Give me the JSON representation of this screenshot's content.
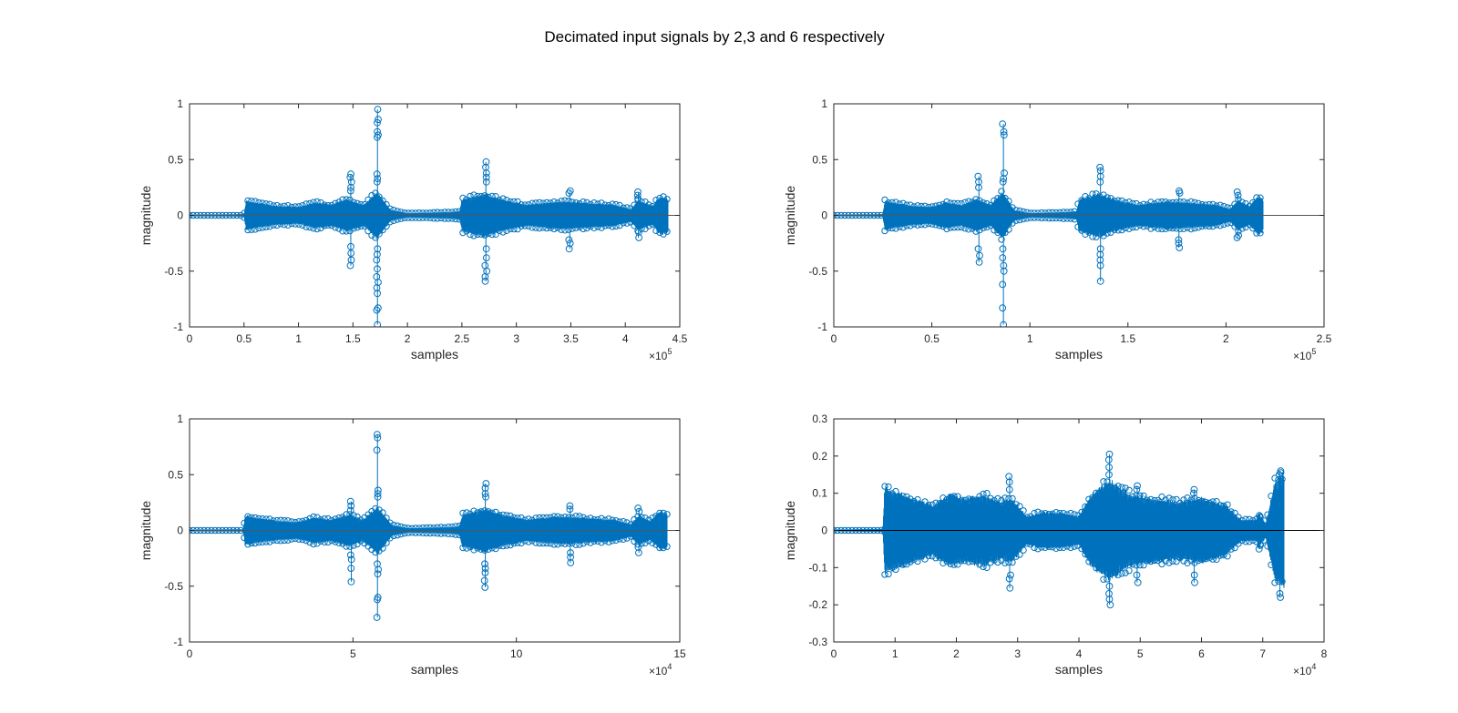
{
  "figure_title": "Decimated input signals by 2,3 and 6 respectively",
  "chart_data": [
    {
      "type": "stem",
      "title": "",
      "xlabel": "samples",
      "ylabel": "magnitude",
      "xlim": [
        0,
        450000
      ],
      "ylim": [
        -1,
        1
      ],
      "x_ticks": [
        0,
        50000,
        100000,
        150000,
        200000,
        250000,
        300000,
        350000,
        400000,
        450000
      ],
      "x_tick_labels": [
        "0",
        "0.5",
        "1",
        "1.5",
        "2",
        "2.5",
        "3",
        "3.5",
        "4",
        "4.5"
      ],
      "x_exponent_base": "×10",
      "x_exponent_power": "5",
      "y_ticks": [
        -1,
        -0.5,
        0,
        0.5,
        1
      ],
      "y_tick_labels": [
        "-1",
        "-0.5",
        "0",
        "0.5",
        "1"
      ],
      "series_color": "#0072BD",
      "data_end": 439000,
      "envelope": [
        {
          "x": 0,
          "amp": 0.005
        },
        {
          "x": 50000,
          "amp": 0.01
        },
        {
          "x": 52000,
          "amp": 0.14
        },
        {
          "x": 60000,
          "amp": 0.12
        },
        {
          "x": 80000,
          "amp": 0.09
        },
        {
          "x": 100000,
          "amp": 0.08
        },
        {
          "x": 115000,
          "amp": 0.12
        },
        {
          "x": 130000,
          "amp": 0.1
        },
        {
          "x": 145000,
          "amp": 0.15
        },
        {
          "x": 160000,
          "amp": 0.1
        },
        {
          "x": 172000,
          "amp": 0.22
        },
        {
          "x": 185000,
          "amp": 0.05
        },
        {
          "x": 200000,
          "amp": 0.02
        },
        {
          "x": 240000,
          "amp": 0.03
        },
        {
          "x": 248000,
          "amp": 0.04
        },
        {
          "x": 250000,
          "amp": 0.15
        },
        {
          "x": 270000,
          "amp": 0.2
        },
        {
          "x": 290000,
          "amp": 0.14
        },
        {
          "x": 310000,
          "amp": 0.1
        },
        {
          "x": 340000,
          "amp": 0.13
        },
        {
          "x": 360000,
          "amp": 0.12
        },
        {
          "x": 390000,
          "amp": 0.1
        },
        {
          "x": 405000,
          "amp": 0.06
        },
        {
          "x": 412000,
          "amp": 0.14
        },
        {
          "x": 425000,
          "amp": 0.09
        },
        {
          "x": 432000,
          "amp": 0.18
        },
        {
          "x": 439000,
          "amp": 0.16
        }
      ],
      "spikes": [
        {
          "x": 148000,
          "values": [
            0.37,
            0.34,
            0.3,
            0.25,
            0.22,
            -0.28,
            -0.34,
            -0.4,
            -0.45
          ]
        },
        {
          "x": 172500,
          "values": [
            0.95,
            0.86,
            0.83,
            0.75,
            0.72,
            0.7,
            0.37,
            0.33,
            0.3,
            -0.3,
            -0.35,
            -0.4,
            -0.48,
            -0.55,
            -0.6,
            -0.65,
            -0.7,
            -0.83,
            -0.85,
            -0.98
          ]
        },
        {
          "x": 272000,
          "values": [
            0.48,
            0.43,
            0.38,
            0.34,
            0.3,
            -0.3,
            -0.38,
            -0.45,
            -0.5,
            -0.55,
            -0.59
          ]
        },
        {
          "x": 349000,
          "values": [
            0.22,
            0.2,
            -0.22,
            -0.25,
            -0.3
          ]
        },
        {
          "x": 412000,
          "values": [
            0.21,
            0.18,
            0.15,
            -0.15,
            -0.2
          ]
        }
      ]
    },
    {
      "type": "stem",
      "title": "",
      "xlabel": "samples",
      "ylabel": "magnitude",
      "xlim": [
        0,
        250000
      ],
      "ylim": [
        -1,
        1
      ],
      "x_ticks": [
        0,
        50000,
        100000,
        150000,
        200000,
        250000
      ],
      "x_tick_labels": [
        "0",
        "0.5",
        "1",
        "1.5",
        "2",
        "2.5"
      ],
      "x_exponent_base": "×10",
      "x_exponent_power": "5",
      "y_ticks": [
        -1,
        -0.5,
        0,
        0.5,
        1
      ],
      "y_tick_labels": [
        "-1",
        "-0.5",
        "0",
        "0.5",
        "1"
      ],
      "series_color": "#0072BD",
      "data_end": 219000,
      "envelope": [
        {
          "x": 0,
          "amp": 0.005
        },
        {
          "x": 25000,
          "amp": 0.01
        },
        {
          "x": 26000,
          "amp": 0.14
        },
        {
          "x": 30000,
          "amp": 0.12
        },
        {
          "x": 40000,
          "amp": 0.09
        },
        {
          "x": 50000,
          "amp": 0.08
        },
        {
          "x": 57000,
          "amp": 0.12
        },
        {
          "x": 65000,
          "amp": 0.1
        },
        {
          "x": 73000,
          "amp": 0.15
        },
        {
          "x": 80000,
          "amp": 0.1
        },
        {
          "x": 86000,
          "amp": 0.22
        },
        {
          "x": 92000,
          "amp": 0.05
        },
        {
          "x": 100000,
          "amp": 0.02
        },
        {
          "x": 120000,
          "amp": 0.03
        },
        {
          "x": 124000,
          "amp": 0.04
        },
        {
          "x": 125000,
          "amp": 0.15
        },
        {
          "x": 135000,
          "amp": 0.2
        },
        {
          "x": 145000,
          "amp": 0.14
        },
        {
          "x": 155000,
          "amp": 0.1
        },
        {
          "x": 170000,
          "amp": 0.13
        },
        {
          "x": 180000,
          "amp": 0.12
        },
        {
          "x": 195000,
          "amp": 0.1
        },
        {
          "x": 202000,
          "amp": 0.06
        },
        {
          "x": 206000,
          "amp": 0.14
        },
        {
          "x": 212000,
          "amp": 0.09
        },
        {
          "x": 216000,
          "amp": 0.18
        },
        {
          "x": 219000,
          "amp": 0.16
        }
      ],
      "spikes": [
        {
          "x": 74000,
          "values": [
            0.35,
            0.3,
            0.25,
            -0.3,
            -0.36,
            -0.42
          ]
        },
        {
          "x": 86500,
          "values": [
            0.82,
            0.75,
            0.72,
            0.38,
            0.33,
            0.3,
            -0.3,
            -0.38,
            -0.45,
            -0.5,
            -0.62,
            -0.83,
            -0.98
          ]
        },
        {
          "x": 136000,
          "values": [
            0.43,
            0.4,
            0.35,
            0.3,
            -0.3,
            -0.35,
            -0.4,
            -0.45,
            -0.59
          ]
        },
        {
          "x": 176000,
          "values": [
            0.22,
            0.2,
            -0.22,
            -0.25,
            -0.29
          ]
        },
        {
          "x": 206000,
          "values": [
            0.21,
            0.18,
            -0.18,
            -0.2
          ]
        }
      ]
    },
    {
      "type": "stem",
      "title": "",
      "xlabel": "samples",
      "ylabel": "magnitude",
      "xlim": [
        0,
        150000
      ],
      "ylim": [
        -1,
        1
      ],
      "x_ticks": [
        0,
        50000,
        100000,
        150000
      ],
      "x_tick_labels": [
        "0",
        "5",
        "10",
        "15"
      ],
      "x_exponent_base": "×10",
      "x_exponent_power": "4",
      "y_ticks": [
        -1,
        -0.5,
        0,
        0.5,
        1
      ],
      "y_tick_labels": [
        "-1",
        "-0.5",
        "0",
        "0.5",
        "1"
      ],
      "series_color": "#0072BD",
      "data_end": 146000,
      "envelope": [
        {
          "x": 0,
          "amp": 0.005
        },
        {
          "x": 16500,
          "amp": 0.01
        },
        {
          "x": 17000,
          "amp": 0.14
        },
        {
          "x": 20000,
          "amp": 0.12
        },
        {
          "x": 27000,
          "amp": 0.09
        },
        {
          "x": 33000,
          "amp": 0.08
        },
        {
          "x": 38000,
          "amp": 0.12
        },
        {
          "x": 43000,
          "amp": 0.1
        },
        {
          "x": 49000,
          "amp": 0.15
        },
        {
          "x": 53000,
          "amp": 0.1
        },
        {
          "x": 57500,
          "amp": 0.22
        },
        {
          "x": 62000,
          "amp": 0.05
        },
        {
          "x": 67000,
          "amp": 0.02
        },
        {
          "x": 80000,
          "amp": 0.03
        },
        {
          "x": 82500,
          "amp": 0.04
        },
        {
          "x": 83500,
          "amp": 0.15
        },
        {
          "x": 90000,
          "amp": 0.2
        },
        {
          "x": 97000,
          "amp": 0.14
        },
        {
          "x": 103000,
          "amp": 0.1
        },
        {
          "x": 113000,
          "amp": 0.13
        },
        {
          "x": 120000,
          "amp": 0.12
        },
        {
          "x": 130000,
          "amp": 0.1
        },
        {
          "x": 135000,
          "amp": 0.06
        },
        {
          "x": 137500,
          "amp": 0.14
        },
        {
          "x": 141000,
          "amp": 0.09
        },
        {
          "x": 144000,
          "amp": 0.18
        },
        {
          "x": 146000,
          "amp": 0.16
        }
      ],
      "spikes": [
        {
          "x": 49500,
          "values": [
            0.26,
            0.22,
            0.18,
            -0.22,
            -0.26,
            -0.34,
            -0.46
          ]
        },
        {
          "x": 57500,
          "values": [
            0.86,
            0.83,
            0.72,
            0.36,
            0.33,
            0.3,
            -0.3,
            -0.35,
            -0.39,
            -0.6,
            -0.62,
            -0.78
          ]
        },
        {
          "x": 90500,
          "values": [
            0.42,
            0.38,
            0.33,
            0.3,
            -0.3,
            -0.34,
            -0.38,
            -0.45,
            -0.51
          ]
        },
        {
          "x": 116500,
          "values": [
            0.22,
            0.19,
            -0.2,
            -0.24,
            -0.29
          ]
        },
        {
          "x": 137500,
          "values": [
            0.2,
            0.17,
            -0.15,
            -0.2
          ]
        }
      ]
    },
    {
      "type": "stem",
      "title": "",
      "xlabel": "samples",
      "ylabel": "magnitude",
      "xlim": [
        0,
        80000
      ],
      "ylim": [
        -0.3,
        0.3
      ],
      "x_ticks": [
        0,
        10000,
        20000,
        30000,
        40000,
        50000,
        60000,
        70000,
        80000
      ],
      "x_tick_labels": [
        "0",
        "1",
        "2",
        "3",
        "4",
        "5",
        "6",
        "7",
        "8"
      ],
      "x_exponent_base": "×10",
      "x_exponent_power": "4",
      "y_ticks": [
        -0.3,
        -0.2,
        -0.1,
        0,
        0.1,
        0.2,
        0.3
      ],
      "y_tick_labels": [
        "-0.3",
        "-0.2",
        "-0.1",
        "0",
        "0.1",
        "0.2",
        "0.3"
      ],
      "series_color": "#0072BD",
      "data_end": 73500,
      "envelope": [
        {
          "x": 0,
          "amp": 0.002
        },
        {
          "x": 8000,
          "amp": 0.004
        },
        {
          "x": 8300,
          "amp": 0.12
        },
        {
          "x": 10000,
          "amp": 0.11
        },
        {
          "x": 13000,
          "amp": 0.09
        },
        {
          "x": 16000,
          "amp": 0.07
        },
        {
          "x": 19000,
          "amp": 0.1
        },
        {
          "x": 21500,
          "amp": 0.09
        },
        {
          "x": 24500,
          "amp": 0.1
        },
        {
          "x": 27000,
          "amp": 0.08
        },
        {
          "x": 29000,
          "amp": 0.09
        },
        {
          "x": 31500,
          "amp": 0.04
        },
        {
          "x": 34000,
          "amp": 0.05
        },
        {
          "x": 37000,
          "amp": 0.05
        },
        {
          "x": 40000,
          "amp": 0.04
        },
        {
          "x": 42000,
          "amp": 0.1
        },
        {
          "x": 45000,
          "amp": 0.14
        },
        {
          "x": 48500,
          "amp": 0.1
        },
        {
          "x": 52000,
          "amp": 0.09
        },
        {
          "x": 56000,
          "amp": 0.08
        },
        {
          "x": 60000,
          "amp": 0.09
        },
        {
          "x": 64000,
          "amp": 0.07
        },
        {
          "x": 66500,
          "amp": 0.03
        },
        {
          "x": 69000,
          "amp": 0.03
        },
        {
          "x": 69300,
          "amp": 0.05
        },
        {
          "x": 70500,
          "amp": 0.02
        },
        {
          "x": 72000,
          "amp": 0.14
        },
        {
          "x": 73500,
          "amp": 0.16
        }
      ],
      "spikes": [
        {
          "x": 28700,
          "values": [
            0.145,
            0.13,
            0.11,
            -0.12,
            -0.13,
            -0.155
          ]
        },
        {
          "x": 45000,
          "values": [
            0.205,
            0.19,
            0.17,
            0.15,
            -0.15,
            -0.17,
            -0.185,
            -0.2
          ]
        },
        {
          "x": 49500,
          "values": [
            0.12,
            0.11,
            -0.12,
            -0.14
          ]
        },
        {
          "x": 58800,
          "values": [
            0.11,
            0.1,
            -0.12,
            -0.14
          ]
        },
        {
          "x": 69500,
          "values": [
            0.04,
            0.035,
            -0.04,
            -0.05
          ]
        },
        {
          "x": 72800,
          "values": [
            0.16,
            0.155,
            0.15,
            -0.17,
            -0.18
          ]
        }
      ]
    }
  ]
}
